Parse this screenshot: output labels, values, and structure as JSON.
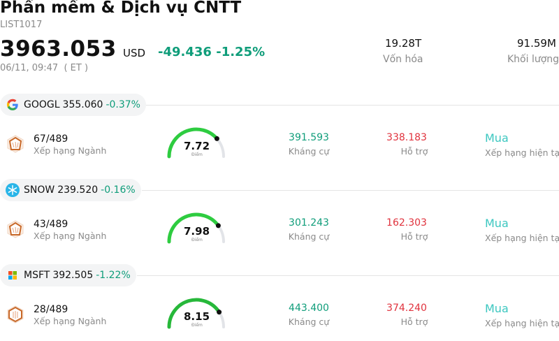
{
  "header": {
    "title": "Phần mềm & Dịch vụ CNTT",
    "code": "LIST1017",
    "price": "3963.053",
    "currency": "USD",
    "change": "-49.436",
    "change_pct": "-1.25%",
    "datetime": "06/11, 09:47",
    "timezone": "( ET )",
    "market_cap_value": "19.28T",
    "market_cap_label": "Vốn hóa",
    "volume_value": "91.59M",
    "volume_label": "Khối lượng"
  },
  "colors": {
    "positive": "#0f9d7a",
    "support": "#e0323d",
    "rating": "#3cc7c0",
    "gauge_green": "#2ecc40"
  },
  "stocks": [
    {
      "logo_icon": "google-logo-icon",
      "ticker": "GOOGL",
      "price": "355.060",
      "change_pct": "-0.37%",
      "rank_value": "67/489",
      "rank_label": "Xếp hạng Ngành",
      "score": "7.72",
      "score_label": "Điểm",
      "score_fraction": 0.772,
      "resistance_value": "391.593",
      "resistance_label": "Kháng cự",
      "support_value": "338.183",
      "support_label": "Hỗ trợ",
      "rating_value": "Mua",
      "rating_label": "Xếp hạng hiện tại"
    },
    {
      "logo_icon": "snowflake-logo-icon",
      "ticker": "SNOW",
      "price": "239.520",
      "change_pct": "-0.16%",
      "rank_value": "43/489",
      "rank_label": "Xếp hạng Ngành",
      "score": "7.98",
      "score_label": "Điểm",
      "score_fraction": 0.798,
      "resistance_value": "301.243",
      "resistance_label": "Kháng cự",
      "support_value": "162.303",
      "support_label": "Hỗ trợ",
      "rating_value": "Mua",
      "rating_label": "Xếp hạng hiện tại"
    },
    {
      "logo_icon": "microsoft-logo-icon",
      "ticker": "MSFT",
      "price": "392.505",
      "change_pct": "-1.22%",
      "rank_value": "28/489",
      "rank_label": "Xếp hạng Ngành",
      "score": "8.15",
      "score_label": "Điểm",
      "score_fraction": 0.815,
      "resistance_value": "443.400",
      "resistance_label": "Kháng cự",
      "support_value": "374.240",
      "support_label": "Hỗ trợ",
      "rating_value": "Mua",
      "rating_label": "Xếp hạng hiện tại"
    }
  ]
}
